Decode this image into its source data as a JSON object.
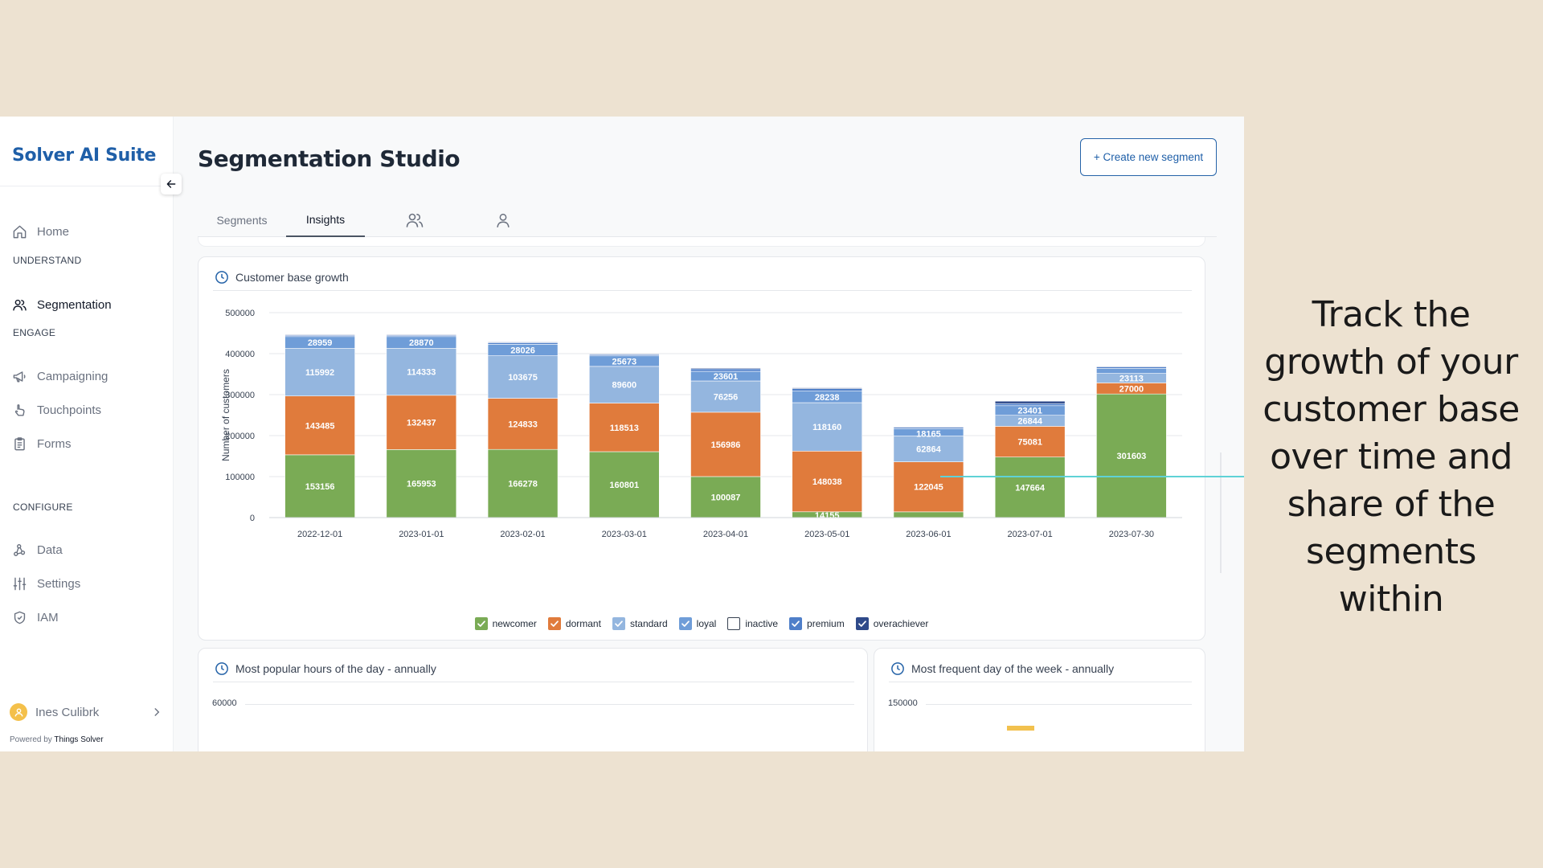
{
  "promo_text": "Track the growth of your customer base over time and share of the segments within",
  "sidebar": {
    "brand": "Solver AI Suite",
    "items": [
      {
        "label": "Home",
        "icon": "home-icon"
      },
      {
        "section": "UNDERSTAND"
      },
      {
        "label": "Segmentation",
        "icon": "users-icon",
        "active": true
      },
      {
        "section": "ENGAGE"
      },
      {
        "label": "Campaigning",
        "icon": "megaphone-icon"
      },
      {
        "label": "Touchpoints",
        "icon": "hand-pointer-icon"
      },
      {
        "label": "Forms",
        "icon": "clipboard-icon"
      },
      {
        "section": "CONFIGURE"
      },
      {
        "label": "Data",
        "icon": "nodes-icon"
      },
      {
        "label": "Settings",
        "icon": "sliders-icon"
      },
      {
        "label": "IAM",
        "icon": "shield-icon"
      }
    ],
    "user_name": "Ines Culibrk",
    "powered_by_prefix": "Powered by",
    "powered_by_name": "Things Solver"
  },
  "header": {
    "title": "Segmentation Studio",
    "create_button": "+ Create new segment"
  },
  "tabs": [
    {
      "label": "Segments",
      "active": false
    },
    {
      "label": "Insights",
      "active": true
    },
    {
      "label": "",
      "icon": "users-icon"
    },
    {
      "label": "",
      "icon": "user-icon"
    }
  ],
  "main_chart": {
    "title": "Customer base growth",
    "colors": {
      "newcomer": "#7aab55",
      "dormant": "#e07b3c",
      "standard": "#94b6df",
      "loyal": "#6f9dd8",
      "inactive": "#ffffff",
      "premium": "#4f7fc9",
      "overachiever": "#2f4a8a"
    },
    "legend": [
      {
        "name": "newcomer",
        "checked": true
      },
      {
        "name": "dormant",
        "checked": true
      },
      {
        "name": "standard",
        "checked": true
      },
      {
        "name": "loyal",
        "checked": true
      },
      {
        "name": "inactive",
        "checked": false
      },
      {
        "name": "premium",
        "checked": true
      },
      {
        "name": "overachiever",
        "checked": true
      }
    ]
  },
  "chart_data": [
    {
      "type": "bar",
      "stacked": true,
      "title": "Customer base growth",
      "xlabel": "",
      "ylabel": "Number of customers",
      "ylim": [
        0,
        500000
      ],
      "yticks": [
        0,
        100000,
        200000,
        300000,
        400000,
        500000
      ],
      "categories": [
        "2022-12-01",
        "2023-01-01",
        "2023-02-01",
        "2023-03-01",
        "2023-04-01",
        "2023-05-01",
        "2023-06-01",
        "2023-07-01",
        "2023-07-30"
      ],
      "series": [
        {
          "name": "newcomer",
          "values": [
            153156,
            165953,
            166278,
            160801,
            100087,
            14155,
            14000,
            147664,
            301603
          ],
          "labels": [
            "153156",
            "165953",
            "166278",
            "160801",
            "100087",
            "14155",
            "",
            "147664",
            "301603"
          ]
        },
        {
          "name": "dormant",
          "values": [
            143485,
            132437,
            124833,
            118513,
            156986,
            148038,
            122045,
            75081,
            27000
          ],
          "labels": [
            "143485",
            "132437",
            "124833",
            "118513",
            "156986",
            "148038",
            "122045",
            "75081",
            "27000"
          ]
        },
        {
          "name": "standard",
          "values": [
            115992,
            114333,
            103675,
            89600,
            76256,
            118160,
            62864,
            26844,
            23113
          ],
          "labels": [
            "115992",
            "114333",
            "103675",
            "89600",
            "76256",
            "118160",
            "62864",
            "26844",
            "23113"
          ]
        },
        {
          "name": "loyal",
          "values": [
            28959,
            28870,
            28026,
            25673,
            23601,
            28238,
            18165,
            23401,
            12000
          ],
          "labels": [
            "28959",
            "28870",
            "28026",
            "25673",
            "23601",
            "28238",
            "18165",
            "23401",
            ""
          ]
        },
        {
          "name": "premium",
          "values": [
            3000,
            3000,
            4000,
            3000,
            6000,
            6000,
            3000,
            5000,
            4000
          ],
          "labels": [
            "",
            "",
            "",
            "",
            "",
            "",
            "",
            "",
            ""
          ]
        },
        {
          "name": "overachiever",
          "values": [
            1500,
            1500,
            1500,
            1500,
            2000,
            2000,
            1500,
            6000,
            1500
          ],
          "labels": [
            "",
            "",
            "",
            "",
            "",
            "",
            "",
            "",
            ""
          ]
        }
      ],
      "legend_position": "bottom",
      "grid": true
    },
    {
      "type": "bar",
      "title": "Most popular hours of the day - annually",
      "yticks_visible": [
        "60000"
      ]
    },
    {
      "type": "bar",
      "title": "Most frequent day of the week - annually",
      "yticks_visible": [
        "150000"
      ]
    }
  ],
  "small_charts": {
    "hours": {
      "title": "Most popular hours of the day - annually",
      "top_tick": "60000"
    },
    "weekday": {
      "title": "Most frequent day of the week - annually",
      "top_tick": "150000"
    }
  }
}
